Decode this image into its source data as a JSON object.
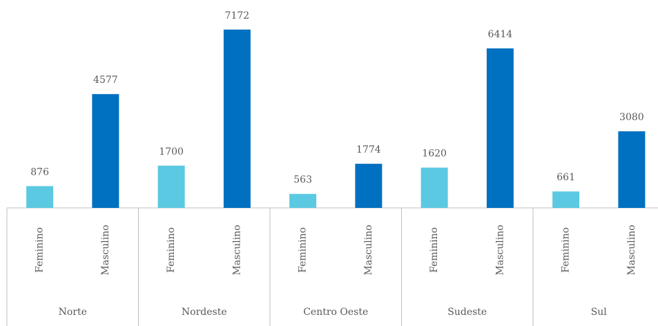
{
  "chart_data": {
    "type": "bar",
    "categories": [
      "Norte",
      "Nordeste",
      "Centro Oeste",
      "Sudeste",
      "Sul"
    ],
    "series": [
      {
        "name": "Feminino",
        "color": "#5bc9e1",
        "values": [
          876,
          1700,
          563,
          1620,
          661
        ]
      },
      {
        "name": "Masculino",
        "color": "#0070c0",
        "values": [
          4577,
          7172,
          1774,
          6414,
          3080
        ]
      }
    ],
    "ylim": [
      0,
      8000
    ]
  }
}
